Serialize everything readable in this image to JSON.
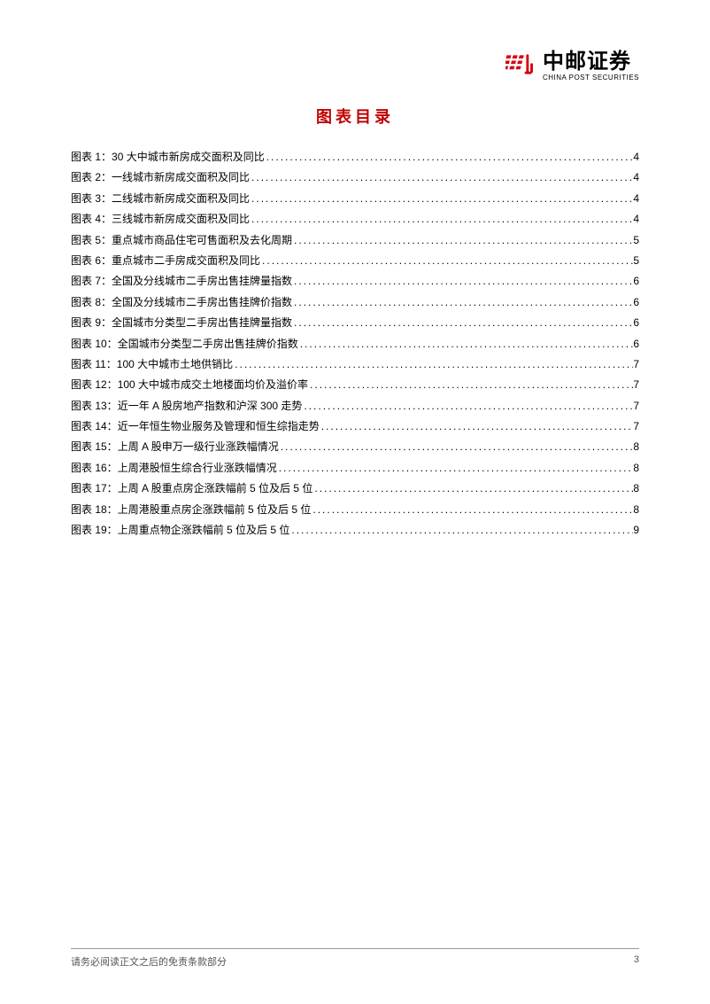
{
  "brand": {
    "cn": "中邮证券",
    "en": "CHINA POST SECURITIES",
    "logo_color": "#d7000f"
  },
  "title": "图表目录",
  "title_color": "#c00000",
  "toc": [
    {
      "label": "图表 1：",
      "desc": "30 大中城市新房成交面积及同比",
      "page": "4"
    },
    {
      "label": "图表 2：",
      "desc": "一线城市新房成交面积及同比",
      "page": "4"
    },
    {
      "label": "图表 3：",
      "desc": "二线城市新房成交面积及同比",
      "page": "4"
    },
    {
      "label": "图表 4：",
      "desc": "三线城市新房成交面积及同比",
      "page": "4"
    },
    {
      "label": "图表 5：",
      "desc": "重点城市商品住宅可售面积及去化周期",
      "page": "5"
    },
    {
      "label": "图表 6：",
      "desc": "重点城市二手房成交面积及同比",
      "page": "5"
    },
    {
      "label": "图表 7：",
      "desc": "全国及分线城市二手房出售挂牌量指数",
      "page": "6"
    },
    {
      "label": "图表 8：",
      "desc": "全国及分线城市二手房出售挂牌价指数",
      "page": "6"
    },
    {
      "label": "图表 9：",
      "desc": "全国城市分类型二手房出售挂牌量指数",
      "page": "6"
    },
    {
      "label": "图表 10：",
      "desc": "全国城市分类型二手房出售挂牌价指数",
      "page": "6"
    },
    {
      "label": "图表 11：",
      "desc": "100 大中城市土地供销比",
      "page": "7"
    },
    {
      "label": "图表 12：",
      "desc": "100 大中城市成交土地楼面均价及溢价率",
      "page": "7"
    },
    {
      "label": "图表 13：",
      "desc": "近一年 A 股房地产指数和沪深 300 走势",
      "page": "7"
    },
    {
      "label": "图表 14：",
      "desc": "近一年恒生物业服务及管理和恒生综指走势",
      "page": "7"
    },
    {
      "label": "图表 15：",
      "desc": "上周 A 股申万一级行业涨跌幅情况",
      "page": "8"
    },
    {
      "label": "图表 16：",
      "desc": "上周港股恒生综合行业涨跌幅情况",
      "page": "8"
    },
    {
      "label": "图表 17：",
      "desc": "上周 A 股重点房企涨跌幅前 5 位及后 5 位",
      "page": "8"
    },
    {
      "label": "图表 18：",
      "desc": "上周港股重点房企涨跌幅前 5 位及后 5 位",
      "page": "8"
    },
    {
      "label": "图表 19：",
      "desc": "上周重点物企涨跌幅前 5 位及后 5 位",
      "page": "9"
    }
  ],
  "footer": {
    "disclaimer": "请务必阅读正文之后的免责条款部分",
    "page_number": "3"
  }
}
